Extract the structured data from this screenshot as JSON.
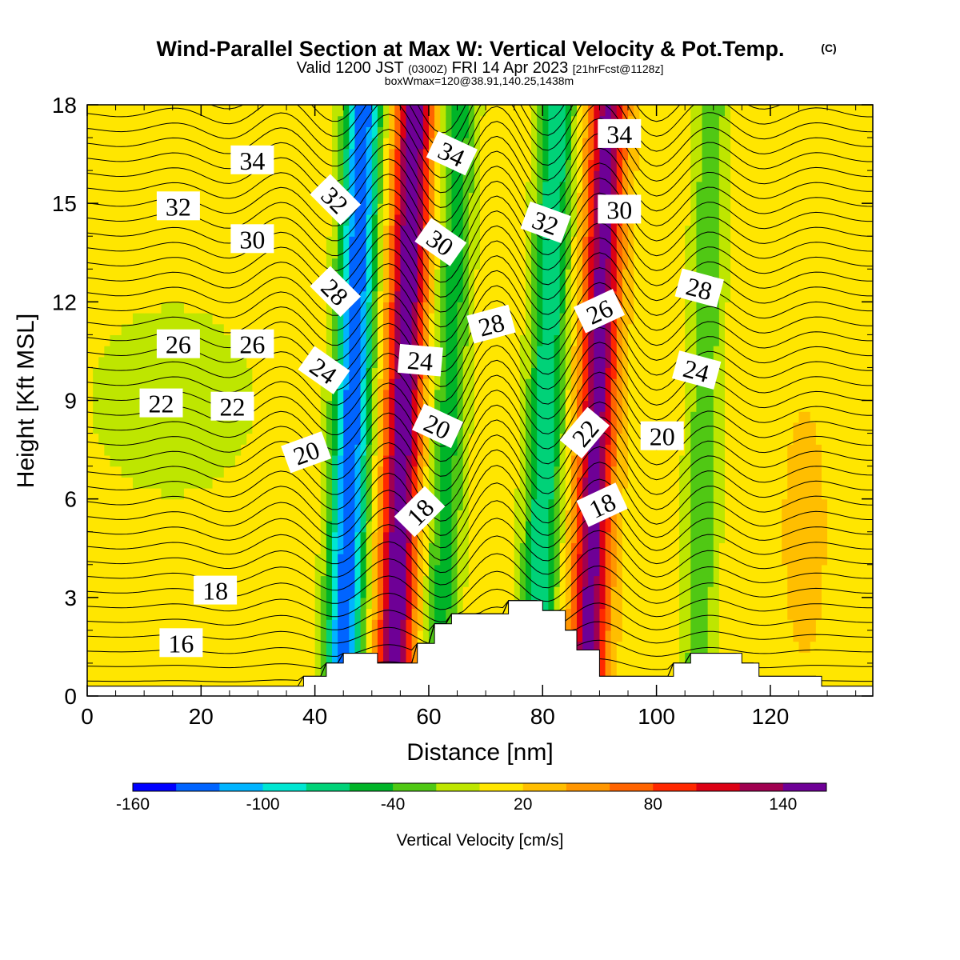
{
  "chart_data": {
    "type": "heatmap",
    "title": "Wind-Parallel Section at Max W: Vertical Velocity & Pot.Temp.",
    "title_mark": "(C)",
    "subtitle_valid": "Valid 1200 JST",
    "subtitle_z": "(0300Z)",
    "subtitle_date": "FRI 14 Apr 2023",
    "subtitle_fcst": "[21hrFcst@1128z]",
    "info_line": "boxWmax=120@38.91,140.25,1438m",
    "xlabel": "Distance [nm]",
    "ylabel": "Height [Kft MSL]",
    "xlim": [
      0,
      138
    ],
    "ylim": [
      0,
      18
    ],
    "xticks": [
      "0",
      "20",
      "40",
      "60",
      "80",
      "100",
      "120"
    ],
    "yticks": [
      "0",
      "3",
      "6",
      "9",
      "12",
      "15",
      "18"
    ],
    "colorbar": {
      "title": "Vertical Velocity [cm/s]",
      "min": -160,
      "max": 160,
      "labels": [
        "-160",
        "-100",
        "-40",
        "20",
        "80",
        "140"
      ],
      "colors": [
        "#0000ff",
        "#0064ff",
        "#00b4ff",
        "#00e6d2",
        "#00d278",
        "#00b428",
        "#50c814",
        "#bee600",
        "#ffe600",
        "#ffbe00",
        "#ff9600",
        "#ff6400",
        "#ff2800",
        "#dc0014",
        "#a00050",
        "#6e0096"
      ]
    },
    "velocity_bands": [
      {
        "x": 0,
        "w": 14
      },
      {
        "x": 46,
        "w": -150
      },
      {
        "x": 55,
        "w": 150
      },
      {
        "x": 63,
        "w": -60
      },
      {
        "x": 80,
        "w": -90
      },
      {
        "x": 89,
        "w": 140
      },
      {
        "x": 108,
        "w": -45
      }
    ],
    "terrain_kft": [
      [
        0,
        0.3
      ],
      [
        38,
        0.3
      ],
      [
        38,
        0.6
      ],
      [
        42,
        0.6
      ],
      [
        42,
        1.0
      ],
      [
        45,
        1.0
      ],
      [
        45,
        1.3
      ],
      [
        51,
        1.3
      ],
      [
        51,
        1.0
      ],
      [
        58,
        1.0
      ],
      [
        58,
        1.6
      ],
      [
        61,
        1.6
      ],
      [
        61,
        2.2
      ],
      [
        64,
        2.2
      ],
      [
        64,
        2.5
      ],
      [
        74,
        2.5
      ],
      [
        74,
        2.9
      ],
      [
        80,
        2.9
      ],
      [
        80,
        2.6
      ],
      [
        84,
        2.6
      ],
      [
        84,
        2.0
      ],
      [
        86,
        2.0
      ],
      [
        86,
        1.4
      ],
      [
        90,
        1.4
      ],
      [
        90,
        0.6
      ],
      [
        103,
        0.6
      ],
      [
        103,
        1.0
      ],
      [
        106,
        1.0
      ],
      [
        106,
        1.3
      ],
      [
        115,
        1.3
      ],
      [
        115,
        1.0
      ],
      [
        118,
        1.0
      ],
      [
        118,
        0.6
      ],
      [
        129,
        0.6
      ],
      [
        129,
        0.3
      ],
      [
        138,
        0.3
      ]
    ],
    "theta_contours": [
      16,
      18,
      20,
      22,
      24,
      26,
      28,
      30,
      32,
      34
    ],
    "contour_labels": [
      {
        "text": "34",
        "x": 29,
        "y": 16.3,
        "rot": 0
      },
      {
        "text": "32",
        "x": 16,
        "y": 14.9,
        "rot": 0
      },
      {
        "text": "30",
        "x": 29,
        "y": 13.9,
        "rot": 0
      },
      {
        "text": "26",
        "x": 16,
        "y": 10.7,
        "rot": 0
      },
      {
        "text": "26",
        "x": 29,
        "y": 10.7,
        "rot": 0
      },
      {
        "text": "22",
        "x": 13,
        "y": 8.9,
        "rot": 0
      },
      {
        "text": "22",
        "x": 25.5,
        "y": 8.8,
        "rot": 0
      },
      {
        "text": "20",
        "x": 38.5,
        "y": 7.4,
        "rot": -20
      },
      {
        "text": "18",
        "x": 22.5,
        "y": 3.2,
        "rot": 0
      },
      {
        "text": "16",
        "x": 16.5,
        "y": 1.6,
        "rot": 0
      },
      {
        "text": "32",
        "x": 43.5,
        "y": 15.1,
        "rot": 45
      },
      {
        "text": "28",
        "x": 43.5,
        "y": 12.3,
        "rot": 45
      },
      {
        "text": "24",
        "x": 41.5,
        "y": 9.9,
        "rot": 35
      },
      {
        "text": "34",
        "x": 64,
        "y": 16.5,
        "rot": 25
      },
      {
        "text": "30",
        "x": 62,
        "y": 13.8,
        "rot": 35
      },
      {
        "text": "24",
        "x": 58.5,
        "y": 10.2,
        "rot": 5
      },
      {
        "text": "28",
        "x": 71,
        "y": 11.3,
        "rot": -15
      },
      {
        "text": "20",
        "x": 61.5,
        "y": 8.2,
        "rot": 25
      },
      {
        "text": "18",
        "x": 58.5,
        "y": 5.6,
        "rot": -45
      },
      {
        "text": "32",
        "x": 80.5,
        "y": 14.4,
        "rot": 20
      },
      {
        "text": "26",
        "x": 90,
        "y": 11.7,
        "rot": -25
      },
      {
        "text": "22",
        "x": 87.5,
        "y": 8.0,
        "rot": -50
      },
      {
        "text": "18",
        "x": 90.5,
        "y": 5.8,
        "rot": -25
      },
      {
        "text": "34",
        "x": 93.5,
        "y": 17.1,
        "rot": 0
      },
      {
        "text": "30",
        "x": 93.5,
        "y": 14.8,
        "rot": 0
      },
      {
        "text": "28",
        "x": 107.5,
        "y": 12.4,
        "rot": 15
      },
      {
        "text": "24",
        "x": 107,
        "y": 9.9,
        "rot": 15
      },
      {
        "text": "20",
        "x": 101,
        "y": 7.9,
        "rot": 0
      }
    ]
  }
}
